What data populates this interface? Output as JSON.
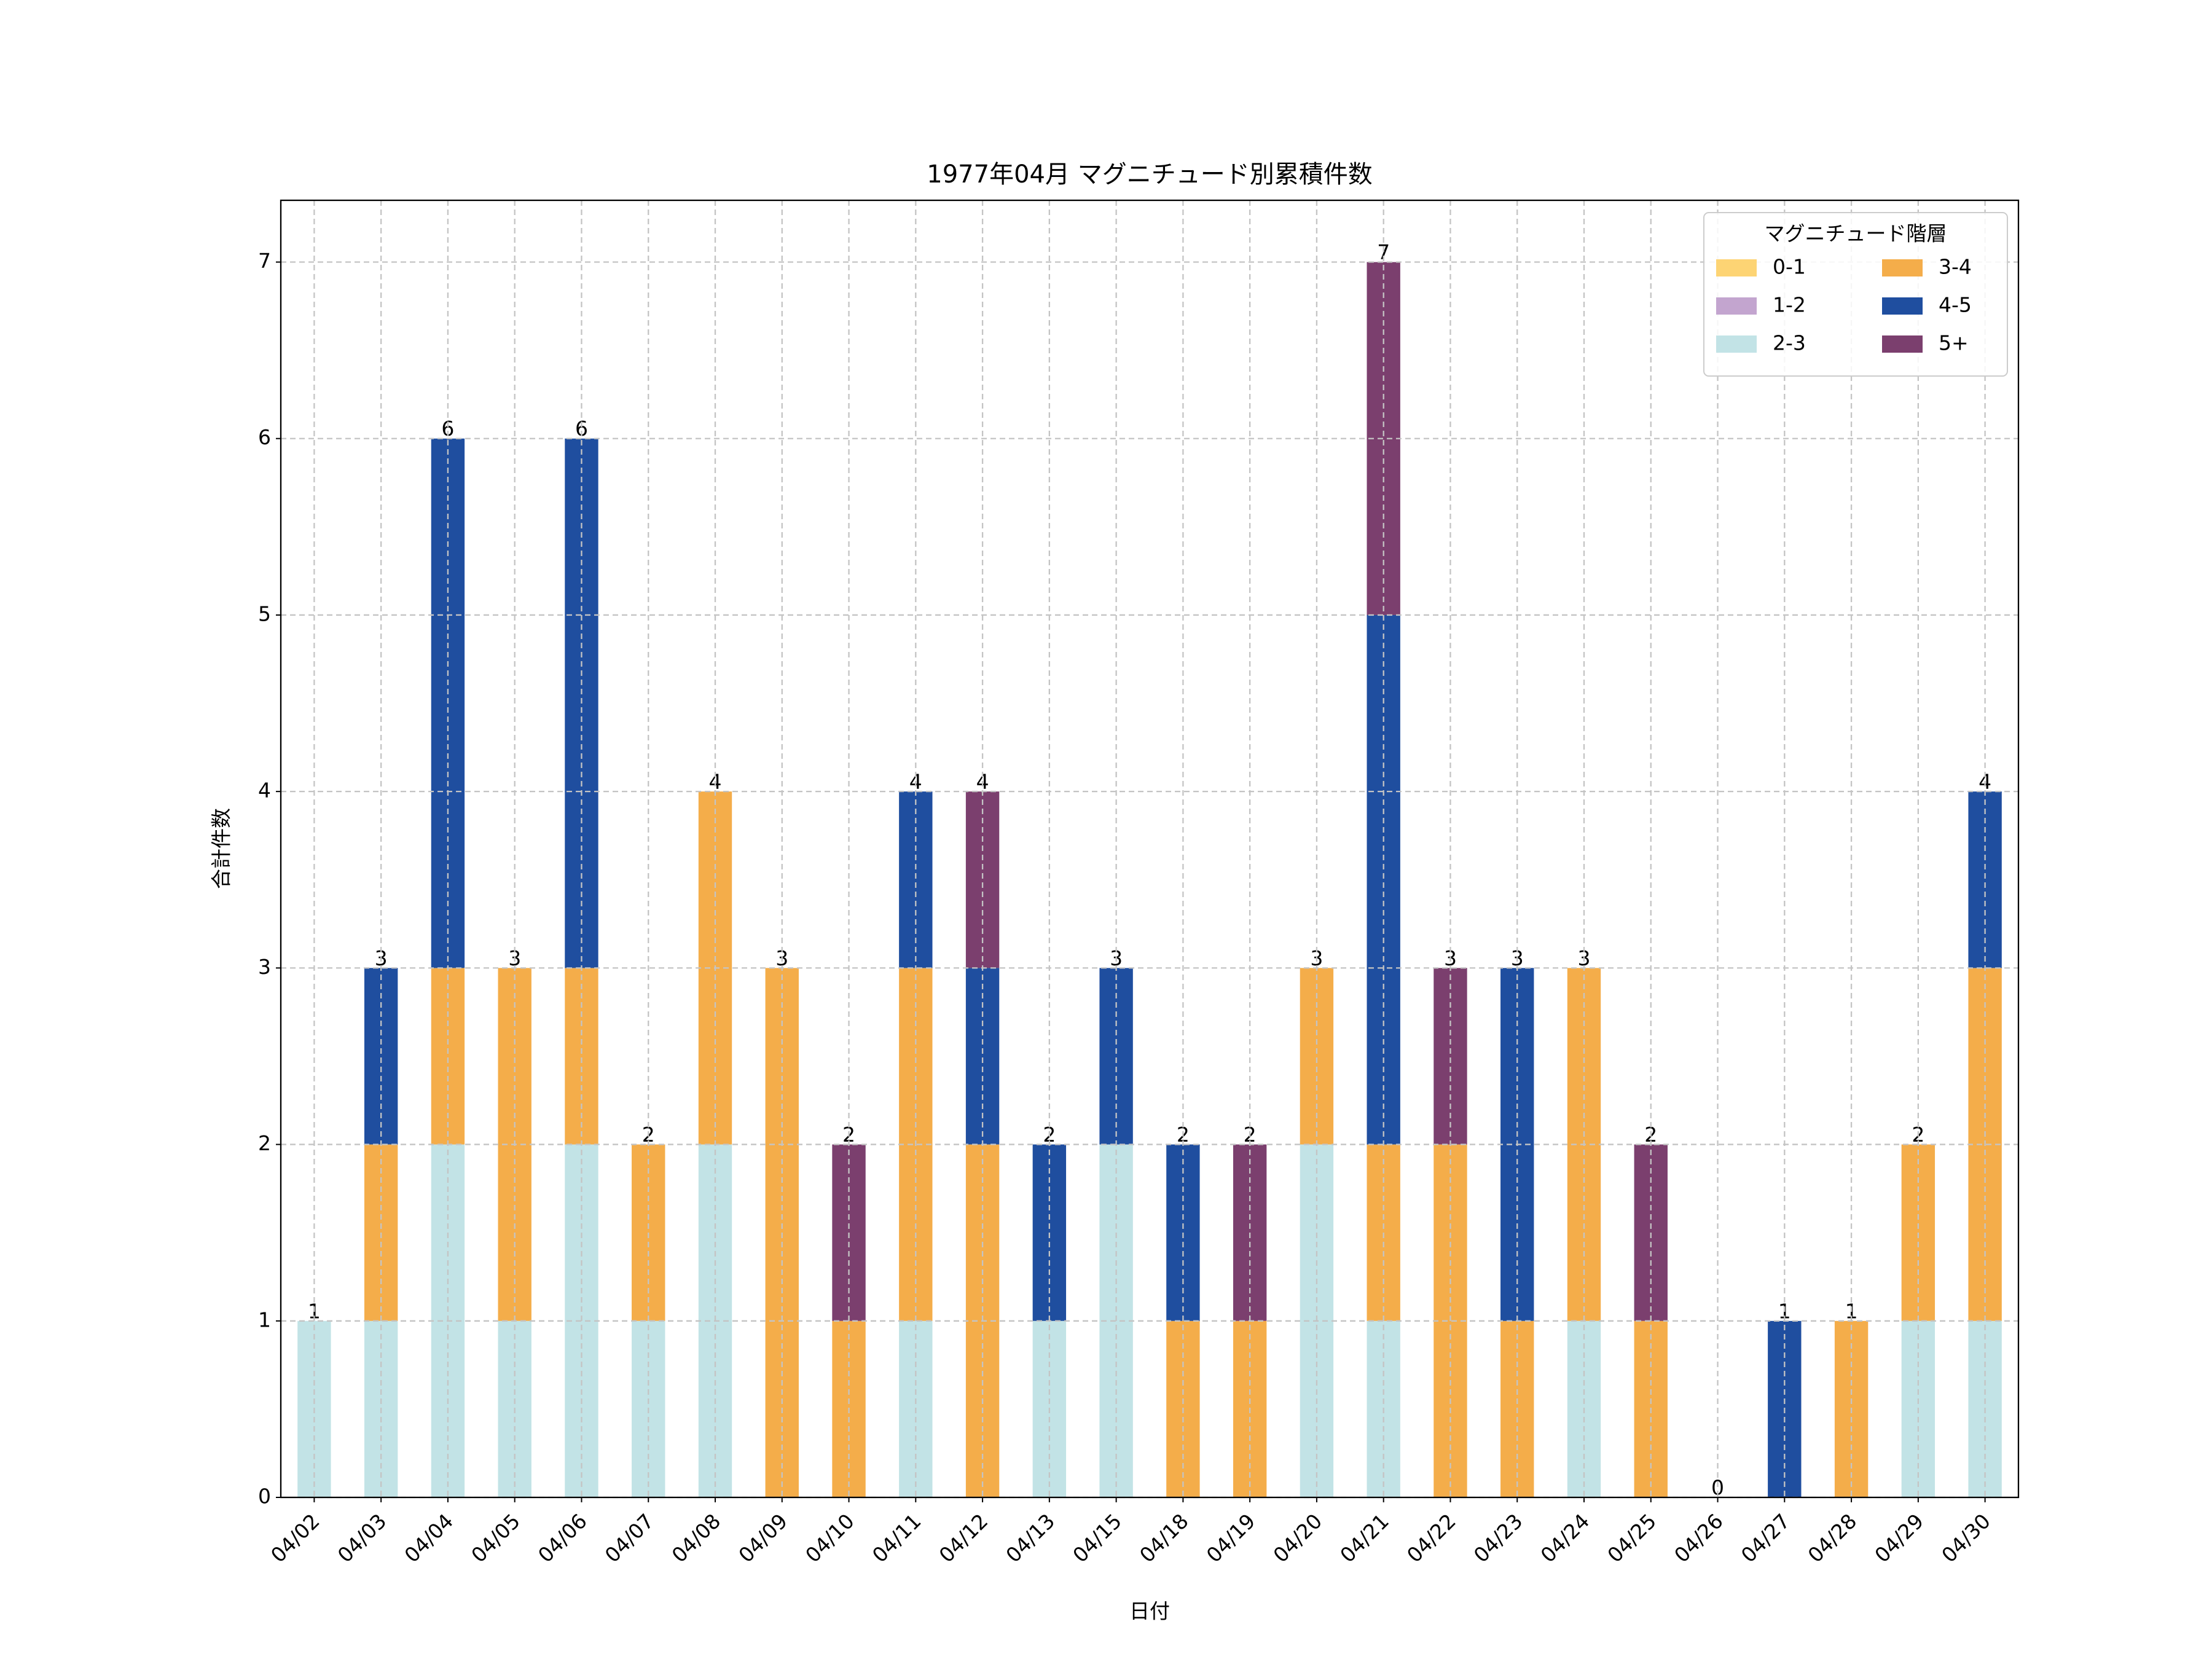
{
  "chart_data": {
    "type": "stacked_bar",
    "title": "1977年04月 マグニチュード別累積件数",
    "x_label": "日付",
    "y_label": "合計件数",
    "categories": [
      "04/02",
      "04/03",
      "04/04",
      "04/05",
      "04/06",
      "04/07",
      "04/08",
      "04/09",
      "04/10",
      "04/11",
      "04/12",
      "04/13",
      "04/15",
      "04/18",
      "04/19",
      "04/20",
      "04/21",
      "04/22",
      "04/23",
      "04/24",
      "04/25",
      "04/26",
      "04/27",
      "04/28",
      "04/29",
      "04/30"
    ],
    "series": [
      {
        "name": "0-1",
        "color": "#fdd474",
        "values": [
          0,
          0,
          0,
          0,
          0,
          0,
          0,
          0,
          0,
          0,
          0,
          0,
          0,
          0,
          0,
          0,
          0,
          0,
          0,
          0,
          0,
          0,
          0,
          0,
          0,
          0
        ]
      },
      {
        "name": "1-2",
        "color": "#c3a5cf",
        "values": [
          0,
          0,
          0,
          0,
          0,
          0,
          0,
          0,
          0,
          0,
          0,
          0,
          0,
          0,
          0,
          0,
          0,
          0,
          0,
          0,
          0,
          0,
          0,
          0,
          0,
          0
        ]
      },
      {
        "name": "2-3",
        "color": "#c2e3e6",
        "values": [
          1,
          1,
          2,
          1,
          2,
          1,
          2,
          0,
          0,
          1,
          0,
          1,
          2,
          0,
          0,
          2,
          1,
          0,
          0,
          1,
          0,
          0,
          0,
          0,
          1,
          1
        ]
      },
      {
        "name": "3-4",
        "color": "#f4ad4a",
        "values": [
          0,
          1,
          1,
          2,
          1,
          1,
          2,
          3,
          1,
          2,
          2,
          0,
          0,
          1,
          1,
          1,
          1,
          2,
          1,
          2,
          1,
          0,
          0,
          1,
          1,
          2
        ]
      },
      {
        "name": "4-5",
        "color": "#1f4e9f",
        "values": [
          0,
          1,
          3,
          0,
          3,
          0,
          0,
          0,
          0,
          1,
          1,
          1,
          1,
          1,
          0,
          0,
          3,
          0,
          2,
          0,
          0,
          0,
          1,
          0,
          0,
          1
        ]
      },
      {
        "name": "5+",
        "color": "#7b3f6e",
        "values": [
          0,
          0,
          0,
          0,
          0,
          0,
          0,
          0,
          1,
          0,
          1,
          0,
          0,
          0,
          1,
          0,
          2,
          1,
          0,
          0,
          1,
          0,
          0,
          0,
          0,
          0
        ]
      }
    ],
    "totals": [
      1,
      3,
      6,
      3,
      6,
      2,
      4,
      3,
      2,
      4,
      4,
      2,
      3,
      2,
      2,
      3,
      7,
      3,
      3,
      3,
      2,
      0,
      1,
      1,
      2,
      4
    ],
    "legend_title": "マグニチュード階層",
    "legend_position": "upper right",
    "ylim": [
      0,
      7.35
    ],
    "yticks": [
      0,
      1,
      2,
      3,
      4,
      5,
      6,
      7
    ],
    "grid": true
  }
}
